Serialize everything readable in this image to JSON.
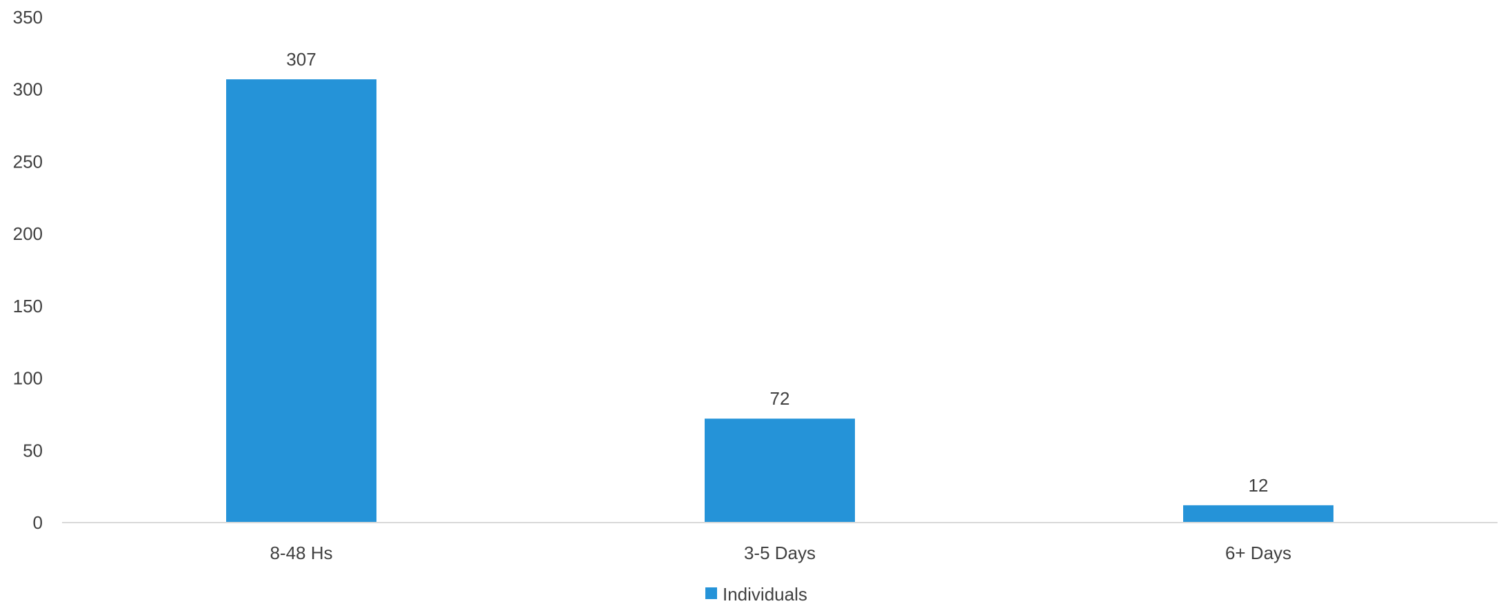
{
  "chart_data": {
    "type": "bar",
    "categories": [
      "8-48 Hs",
      "3-5 Days",
      "6+ Days"
    ],
    "series": [
      {
        "name": "Individuals",
        "values": [
          307,
          72,
          12
        ],
        "color": "#2593D8"
      }
    ],
    "data_labels": [
      "307",
      "72",
      "12"
    ],
    "ylim": [
      0,
      350
    ],
    "yticks": [
      0,
      50,
      100,
      150,
      200,
      250,
      300,
      350
    ],
    "ytick_labels": [
      "0",
      "50",
      "100",
      "150",
      "200",
      "250",
      "300",
      "350"
    ],
    "grid": false,
    "legend_position": "bottom",
    "axis_color": "#D9D9D9",
    "title": "",
    "xlabel": "",
    "ylabel": ""
  }
}
